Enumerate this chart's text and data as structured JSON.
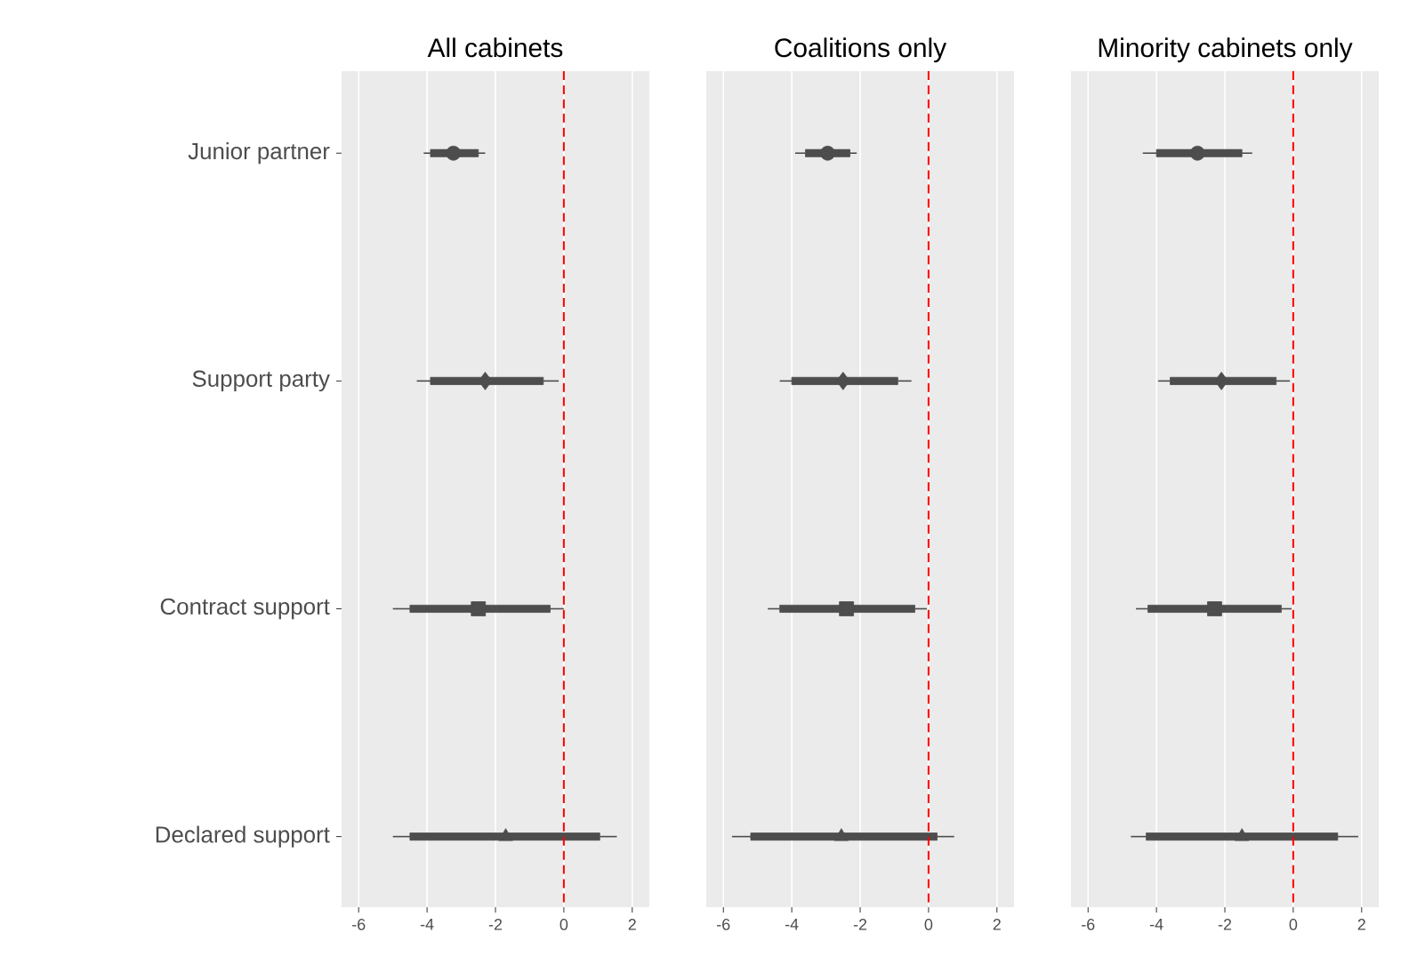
{
  "chart_data": [
    {
      "type": "box",
      "orientation": "horizontal",
      "title": "All cabinets",
      "categories": [
        "Junior partner",
        "Support party",
        "Contract support",
        "Declared support"
      ],
      "xlim": [
        -6.5,
        2.5
      ],
      "xticks": [
        -6,
        -4,
        -2,
        0,
        2
      ],
      "grid": "x",
      "ref_lines": [
        {
          "axis": "x",
          "value": 0,
          "color": "#ff0000",
          "line_style": "dashed"
        }
      ],
      "series": [
        {
          "color": "#4d4d4d",
          "marker": "circle",
          "boxes": [
            {
              "low": -4.1,
              "q1": -3.9,
              "median": -3.23,
              "q3": -2.5,
              "high": -2.3,
              "mean": -3.23
            },
            null,
            null,
            null
          ]
        },
        {
          "color": "#4d4d4d",
          "marker": "diamond",
          "boxes": [
            null,
            {
              "low": -4.3,
              "q1": -3.9,
              "median": -2.3,
              "q3": -0.6,
              "high": -0.15,
              "mean": -2.3
            },
            null,
            null
          ]
        },
        {
          "color": "#4d4d4d",
          "marker": "square",
          "boxes": [
            null,
            null,
            {
              "low": -5.0,
              "q1": -4.5,
              "median": -2.5,
              "q3": -0.4,
              "high": 0,
              "mean": -2.5
            },
            null
          ]
        },
        {
          "color": "#4d4d4d",
          "marker": "triangle",
          "boxes": [
            null,
            null,
            null,
            {
              "low": -5.0,
              "q1": -4.5,
              "median": -1.7,
              "q3": 1.05,
              "high": 1.55,
              "mean": -1.7
            }
          ]
        }
      ]
    },
    {
      "type": "box",
      "orientation": "horizontal",
      "title": "Coalitions only",
      "tick_labels": "x",
      "xlim": [
        -6.5,
        2.5
      ],
      "xticks": [
        -6,
        -4,
        -2,
        0,
        2
      ],
      "grid": "x",
      "ref_lines": [
        {
          "axis": "x",
          "value": 0,
          "color": "#ff0000",
          "line_style": "dashed"
        }
      ],
      "series": [
        {
          "color": "#4d4d4d",
          "marker": "circle",
          "boxes": [
            {
              "low": -3.9,
              "q1": -3.6,
              "median": -2.95,
              "q3": -2.3,
              "high": -2.1,
              "mean": -2.95
            },
            null,
            null,
            null
          ]
        },
        {
          "color": "#4d4d4d",
          "marker": "diamond",
          "boxes": [
            null,
            {
              "low": -4.35,
              "q1": -4.0,
              "median": -2.5,
              "q3": -0.9,
              "high": -0.5,
              "mean": -2.5
            },
            null,
            null
          ]
        },
        {
          "color": "#4d4d4d",
          "marker": "square",
          "boxes": [
            null,
            null,
            {
              "low": -4.7,
              "q1": -4.35,
              "median": -2.4,
              "q3": -0.4,
              "high": -0.05,
              "mean": -2.4
            },
            null
          ]
        },
        {
          "color": "#4d4d4d",
          "marker": "triangle",
          "boxes": [
            null,
            null,
            null,
            {
              "low": -5.75,
              "q1": -5.2,
              "median": -2.55,
              "q3": 0.25,
              "high": 0.75,
              "mean": -2.55
            }
          ]
        }
      ]
    },
    {
      "type": "box",
      "orientation": "horizontal",
      "title": "Minority cabinets only",
      "tick_labels": "x",
      "xlim": [
        -6.5,
        2.5
      ],
      "xticks": [
        -6,
        -4,
        -2,
        0,
        2
      ],
      "grid": "x",
      "ref_lines": [
        {
          "axis": "x",
          "value": 0,
          "color": "#ff0000",
          "line_style": "dashed"
        }
      ],
      "series": [
        {
          "color": "#4d4d4d",
          "marker": "circle",
          "boxes": [
            {
              "low": -4.4,
              "q1": -4.0,
              "median": -2.8,
              "q3": -1.5,
              "high": -1.2,
              "mean": -2.8
            },
            null,
            null,
            null
          ]
        },
        {
          "color": "#4d4d4d",
          "marker": "diamond",
          "boxes": [
            null,
            {
              "low": -3.95,
              "q1": -3.6,
              "median": -2.1,
              "q3": -0.5,
              "high": -0.1,
              "mean": -2.1
            },
            null,
            null
          ]
        },
        {
          "color": "#4d4d4d",
          "marker": "square",
          "boxes": [
            null,
            null,
            {
              "low": -4.6,
              "q1": -4.25,
              "median": -2.3,
              "q3": -0.35,
              "high": -0.05,
              "mean": -2.3
            },
            null
          ]
        },
        {
          "color": "#4d4d4d",
          "marker": "triangle",
          "boxes": [
            null,
            null,
            null,
            {
              "low": -4.75,
              "q1": -4.3,
              "median": -1.5,
              "q3": 1.3,
              "high": 1.9,
              "mean": -1.5
            }
          ]
        }
      ]
    }
  ]
}
